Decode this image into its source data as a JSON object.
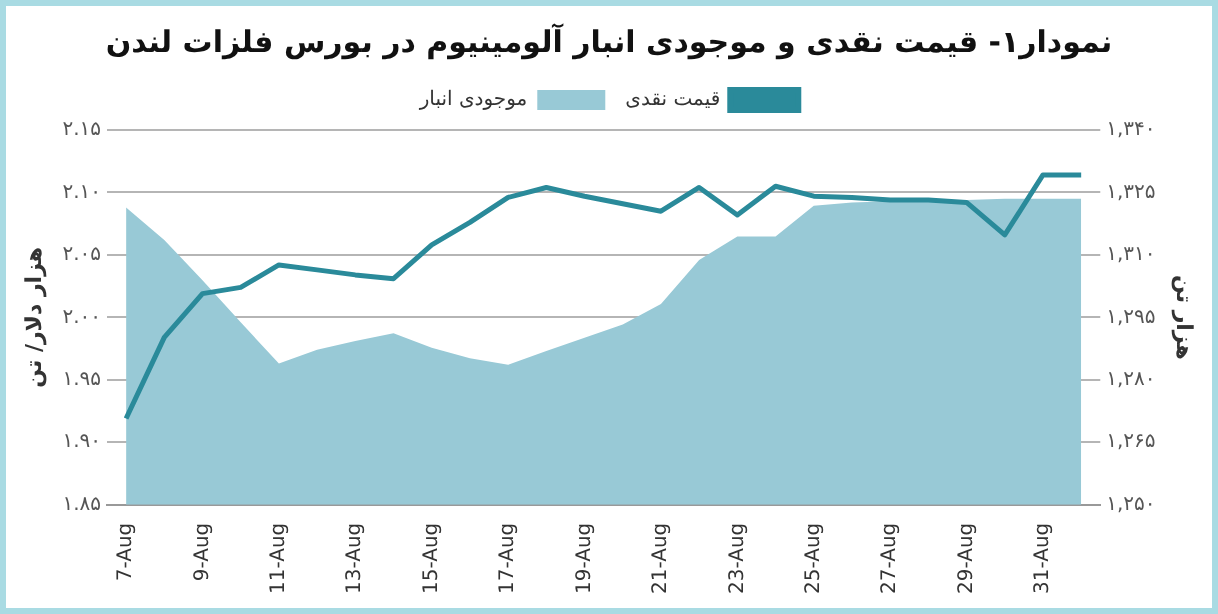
{
  "chart_data": {
    "type": "line",
    "title": "نمودار۱- قیمت نقدی و موجودی انبار آلومینیوم در بورس فلزات لندن",
    "ylabel": "هزار دلار/ تن",
    "y2label": "هزار تن",
    "categories": [
      "7-Aug",
      null,
      "9-Aug",
      null,
      "11-Aug",
      null,
      "13-Aug",
      null,
      "15-Aug",
      null,
      "17-Aug",
      null,
      "19-Aug",
      null,
      "21-Aug",
      null,
      "23-Aug",
      null,
      "25-Aug",
      null,
      "27-Aug",
      null,
      "29-Aug",
      null,
      "31-Aug",
      null
    ],
    "series": [
      {
        "name": "قیمت نقدی",
        "color": "#2a8a9a",
        "values": [
          1.919,
          1.984,
          2.019,
          2.024,
          2.042,
          2.038,
          2.034,
          2.031,
          2.058,
          2.076,
          2.096,
          2.104,
          2.097,
          2.091,
          2.085,
          2.104,
          2.082,
          2.105,
          2.097,
          2.096,
          2.094,
          2.094,
          2.092,
          2.066,
          2.114,
          2.114
        ]
      },
      {
        "name": "موجودی انبار",
        "type": "area",
        "axis": "y2",
        "color": "#98c9d6",
        "values": [
          1321.4,
          1313.6,
          1303.9,
          1293.8,
          1283.9,
          1287.2,
          1289.3,
          1291.2,
          1287.7,
          1285.2,
          1283.6,
          1286.9,
          1290.1,
          1293.3,
          1298.2,
          1308.8,
          1314.4,
          1314.4,
          1321.8,
          1322.6,
          1322.9,
          1323.0,
          1323.2,
          1323.5,
          1323.5,
          1323.5
        ]
      }
    ],
    "ylim": [
      1.85,
      2.15
    ],
    "yticks": [
      {
        "value": 1.85,
        "label": "۱.۸۵"
      },
      {
        "value": 1.9,
        "label": "۱.۹۰"
      },
      {
        "value": 1.95,
        "label": "۱.۹۵"
      },
      {
        "value": 2.0,
        "label": "۲.۰۰"
      },
      {
        "value": 2.05,
        "label": "۲.۰۵"
      },
      {
        "value": 2.1,
        "label": "۲.۱۰"
      },
      {
        "value": 2.15,
        "label": "۲.۱۵"
      }
    ],
    "y2lim": [
      1250,
      1340
    ],
    "y2ticks": [
      {
        "value": 1250,
        "label": "۱,۲۵۰"
      },
      {
        "value": 1265,
        "label": "۱,۲۶۵"
      },
      {
        "value": 1280,
        "label": "۱,۲۸۰"
      },
      {
        "value": 1295,
        "label": "۱,۲۹۵"
      },
      {
        "value": 1310,
        "label": "۱,۳۱۰"
      },
      {
        "value": 1325,
        "label": "۱,۳۲۵"
      },
      {
        "value": 1340,
        "label": "۱,۳۴۰"
      }
    ],
    "grid": "y",
    "legend": "top",
    "marker": "none",
    "line_style": "solid"
  }
}
